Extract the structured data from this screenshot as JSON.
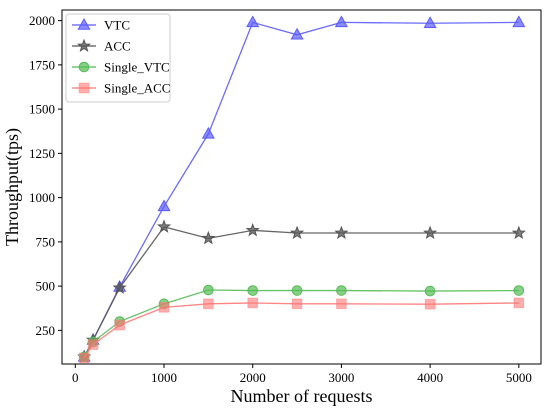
{
  "chart_data": {
    "type": "line",
    "title": "",
    "xlabel": "Number of requests",
    "ylabel": "Throughput(tps)",
    "xlim": [
      -150,
      5250
    ],
    "ylim": [
      60,
      2060
    ],
    "x_ticks": [
      0,
      1000,
      2000,
      3000,
      4000,
      5000
    ],
    "y_ticks": [
      250,
      500,
      750,
      1000,
      1250,
      1500,
      1750,
      2000
    ],
    "x_tick_labels": [
      "0",
      "1000",
      "2000",
      "3000",
      "4000",
      "5000"
    ],
    "y_tick_labels": [
      "250",
      "500",
      "750",
      "1000",
      "1250",
      "1500",
      "1750",
      "2000"
    ],
    "grid": false,
    "legend_position": "top-left",
    "x": [
      100,
      200,
      500,
      1000,
      1500,
      2000,
      2500,
      3000,
      4000,
      5000
    ],
    "series": [
      {
        "name": "VTC",
        "marker": "triangle",
        "color": "#5b5bff",
        "values": [
          100,
          195,
          495,
          950,
          1360,
          1990,
          1920,
          1990,
          1985,
          1990
        ]
      },
      {
        "name": "ACC",
        "marker": "star",
        "color": "#555555",
        "values": [
          100,
          195,
          490,
          835,
          770,
          815,
          800,
          800,
          800,
          800
        ]
      },
      {
        "name": "Single_VTC",
        "marker": "circle",
        "color": "#55bb55",
        "values": [
          100,
          185,
          300,
          400,
          478,
          475,
          475,
          475,
          472,
          475
        ]
      },
      {
        "name": "Single_ACC",
        "marker": "square",
        "color": "#ff7777",
        "values": [
          95,
          170,
          280,
          380,
          400,
          405,
          400,
          400,
          398,
          405
        ]
      }
    ]
  }
}
